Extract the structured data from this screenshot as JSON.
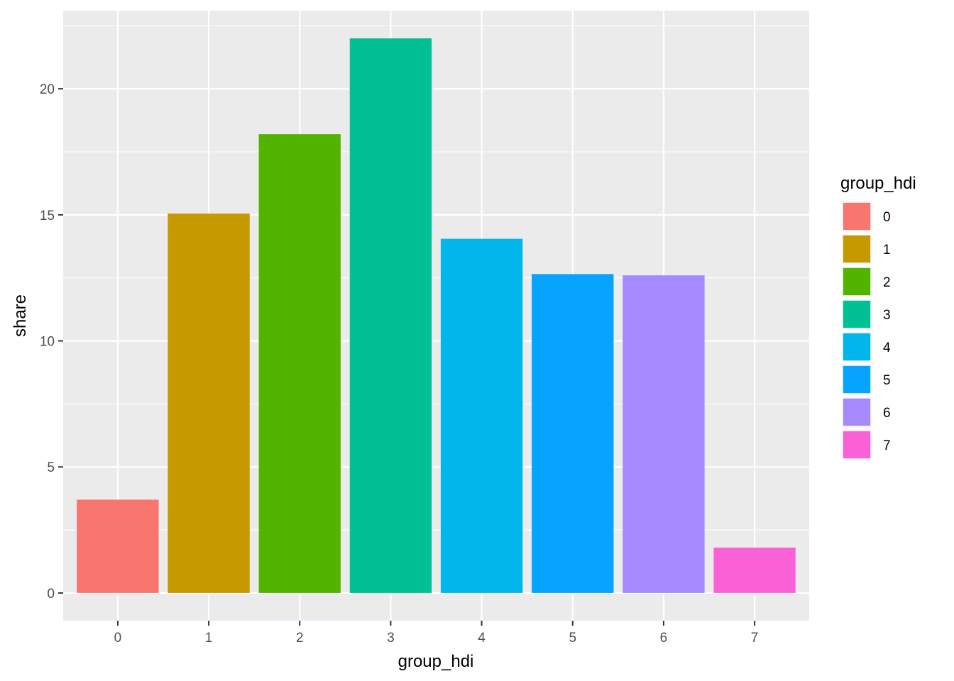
{
  "chart_data": {
    "type": "bar",
    "title": "",
    "xlabel": "group_hdi",
    "ylabel": "share",
    "categories": [
      "0",
      "1",
      "2",
      "3",
      "4",
      "5",
      "6",
      "7"
    ],
    "values": [
      3.7,
      15.05,
      18.2,
      22.0,
      14.05,
      12.65,
      12.6,
      1.8
    ],
    "colors": [
      "#F8766D",
      "#C49A00",
      "#53B400",
      "#00C094",
      "#00B6EB",
      "#06A4FF",
      "#A58AFF",
      "#FB61D7"
    ],
    "ylim": [
      -1.1,
      23.1
    ],
    "yticks": [
      0,
      5,
      10,
      15,
      20
    ],
    "ytick_labels": [
      "0",
      "5",
      "10",
      "15",
      "20"
    ],
    "grid": true,
    "panel_background": "#EBEBEB",
    "legend": {
      "title": "group_hdi",
      "position": "right",
      "entries": [
        "0",
        "1",
        "2",
        "3",
        "4",
        "5",
        "6",
        "7"
      ]
    }
  }
}
